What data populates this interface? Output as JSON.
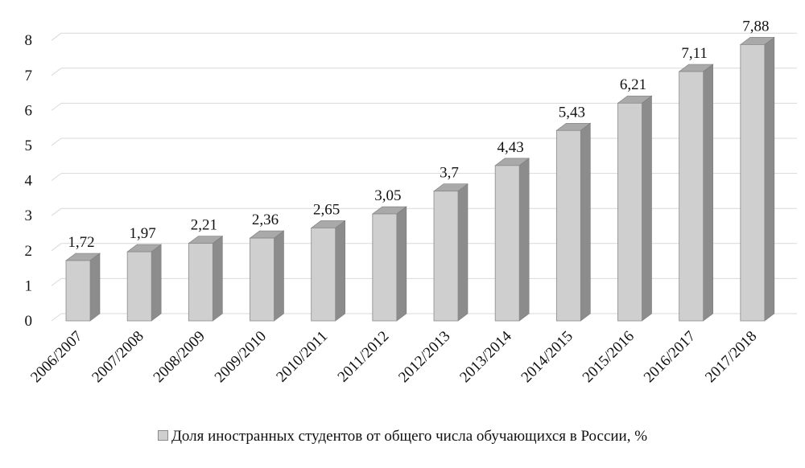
{
  "chart_data": {
    "type": "bar",
    "categories": [
      "2006/2007",
      "2007/2008",
      "2008/2009",
      "2009/2010",
      "2010/2011",
      "2011/2012",
      "2012/2013",
      "2013/2014",
      "2014/2015",
      "2015/2016",
      "2016/2017",
      "2017/2018"
    ],
    "series": [
      {
        "name": "Доля иностранных студентов от общего числа обучающихся в России, %",
        "values": [
          1.72,
          1.97,
          2.21,
          2.36,
          2.65,
          3.05,
          3.7,
          4.43,
          5.43,
          6.21,
          7.11,
          7.88
        ],
        "labels": [
          "1,72",
          "1,97",
          "2,21",
          "2,36",
          "2,65",
          "3,05",
          "3,7",
          "4,43",
          "5,43",
          "6,21",
          "7,11",
          "7,88"
        ]
      }
    ],
    "yticks": [
      "0",
      "1",
      "2",
      "3",
      "4",
      "5",
      "6",
      "7",
      "8"
    ],
    "ylim": [
      0,
      8
    ],
    "grid": true,
    "legend_position": "bottom",
    "colors": {
      "bar_front": "#cfcfcf",
      "bar_side": "#8c8c8c",
      "bar_top": "#a9a9a9",
      "grid": "#d9d9d9"
    }
  }
}
